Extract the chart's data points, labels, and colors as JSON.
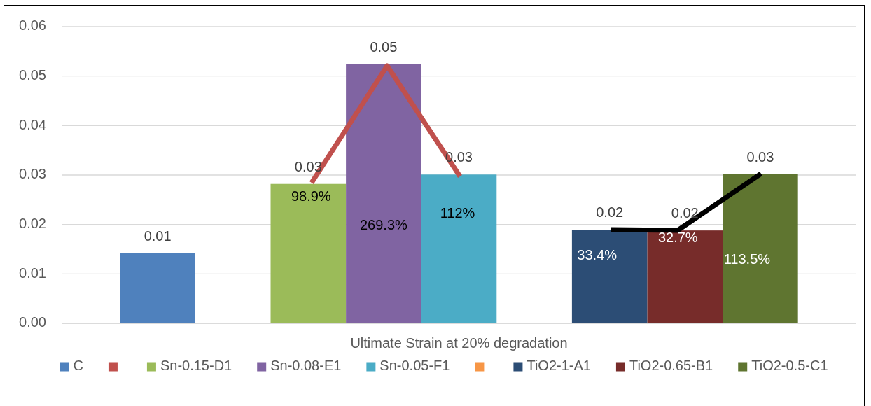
{
  "chart_data": {
    "type": "bar",
    "categories": [
      "Ultimate Strain at 20% degradation"
    ],
    "series": [
      {
        "name": "C",
        "color": "#4f81bd",
        "values": [
          0.0142
        ],
        "value_labels": [
          "0.01"
        ]
      },
      {
        "color": "#c0504d",
        "values": [
          null
        ]
      },
      {
        "name": "Sn-0.15-D1",
        "color": "#9bbb59",
        "values": [
          0.0282
        ],
        "value_labels": [
          "0.03"
        ]
      },
      {
        "name": "Sn-0.08-E1",
        "color": "#8064a2",
        "values": [
          0.0524
        ],
        "value_labels": [
          "0.05"
        ]
      },
      {
        "name": "Sn-0.05-F1",
        "color": "#4bacc6",
        "values": [
          0.0301
        ],
        "value_labels": [
          "0.03"
        ]
      },
      {
        "color": "#f79646",
        "values": [
          null
        ]
      },
      {
        "name": "TiO2-1-A1",
        "color": "#2c4d75",
        "values": [
          0.0189
        ],
        "value_labels": [
          "0.02"
        ]
      },
      {
        "name": "TiO2-0.65-B1",
        "color": "#772c2a",
        "values": [
          0.0188
        ],
        "value_labels": [
          "0.02"
        ]
      },
      {
        "name": "TiO2-0.5-C1",
        "color": "#5f7530",
        "values": [
          0.0302
        ],
        "value_labels": [
          "0.03"
        ]
      }
    ],
    "ylim": [
      0,
      0.06
    ],
    "yticks": [
      {
        "value": 0,
        "label": "0.00"
      },
      0.01,
      0.02,
      0.03,
      0.04,
      0.05,
      0.06
    ],
    "grid": "y",
    "legend": "bottom",
    "annotations": [
      "98.9%",
      "269.3%",
      "112%",
      "33.4%",
      "32.7%",
      "113.5%"
    ]
  }
}
